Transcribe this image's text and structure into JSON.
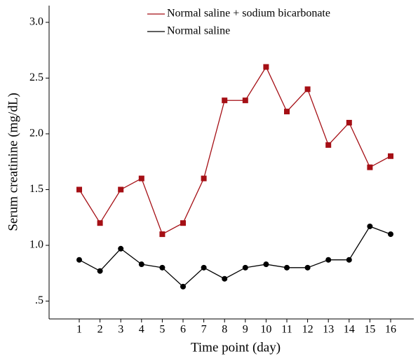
{
  "chart_data": {
    "type": "line",
    "x_label": "Time point (day)",
    "y_label": "Serum creatinine (mg/dL)",
    "categories": [
      "1",
      "2",
      "3",
      "4",
      "5",
      "6",
      "7",
      "8",
      "9",
      "10",
      "11",
      "12",
      "13",
      "14",
      "15",
      "16"
    ],
    "series": [
      {
        "name": "Normal saline + sodium bicarbonate",
        "color": "#a50f15",
        "marker": "square",
        "values": [
          1.5,
          1.2,
          1.5,
          1.6,
          1.1,
          1.2,
          1.6,
          2.3,
          2.3,
          2.6,
          2.2,
          2.4,
          1.9,
          2.1,
          1.7,
          1.8
        ]
      },
      {
        "name": "Normal saline",
        "color": "#000000",
        "marker": "circle",
        "values": [
          0.87,
          0.77,
          0.97,
          0.83,
          0.8,
          0.63,
          0.8,
          0.7,
          0.8,
          0.83,
          0.8,
          0.8,
          0.87,
          0.87,
          1.17,
          1.1
        ]
      }
    ],
    "ylim": [
      0.34,
      3.15
    ],
    "yticks": [
      {
        "value": 0.5,
        "label": ".5"
      },
      {
        "value": 1,
        "label": "1.0"
      },
      {
        "value": 1.5,
        "label": "1.5"
      },
      {
        "value": 2,
        "label": "2.0"
      },
      {
        "value": 2.5,
        "label": "2.5"
      },
      {
        "value": 3,
        "label": "3.0"
      }
    ],
    "legend": "top"
  }
}
